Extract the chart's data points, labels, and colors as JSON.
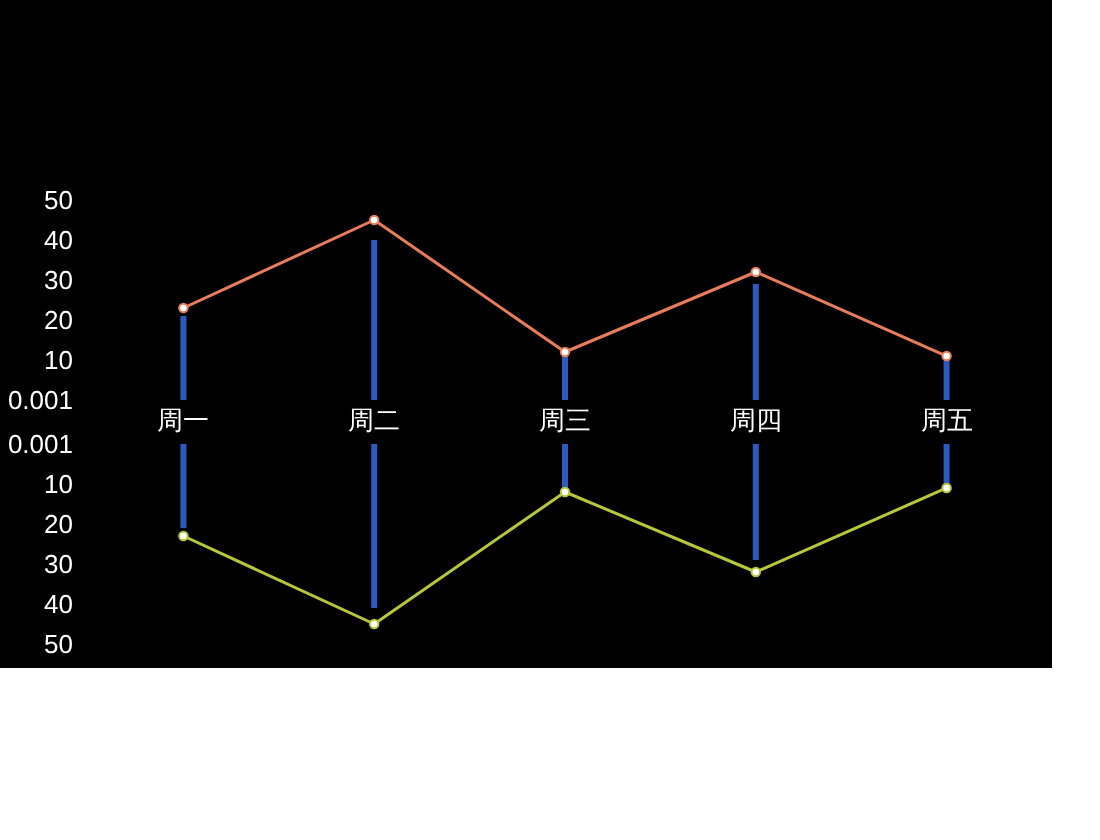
{
  "chart_data": [
    {
      "type": "bar",
      "categories": [
        "周一",
        "周二",
        "周三",
        "周四",
        "周五"
      ],
      "series": [
        {
          "color": "#2b5bbf",
          "values": [
            21,
            40,
            12,
            29,
            11
          ]
        },
        {
          "type": "line",
          "color": "#e97c5a",
          "values": [
            23,
            45,
            12,
            32,
            11
          ]
        }
      ],
      "ylim": [
        0.001,
        50
      ],
      "yticks": [
        0.001,
        10,
        20,
        30,
        40,
        50
      ],
      "marker": "circle",
      "line_style": "solid"
    },
    {
      "type": "bar",
      "categories": [
        "周一",
        "周二",
        "周三",
        "周四",
        "周五"
      ],
      "series": [
        {
          "color": "#2b5bbf",
          "values": [
            21,
            41,
            12,
            29,
            11
          ]
        },
        {
          "type": "line",
          "color": "#b8c63a",
          "values": [
            23,
            45,
            12,
            32,
            11
          ]
        }
      ],
      "ylim": [
        50,
        0.001
      ],
      "yticks": [
        0.001,
        10,
        20,
        30,
        40,
        50
      ],
      "marker": "circle",
      "line_style": "solid",
      "tick_labels": "y"
    }
  ]
}
